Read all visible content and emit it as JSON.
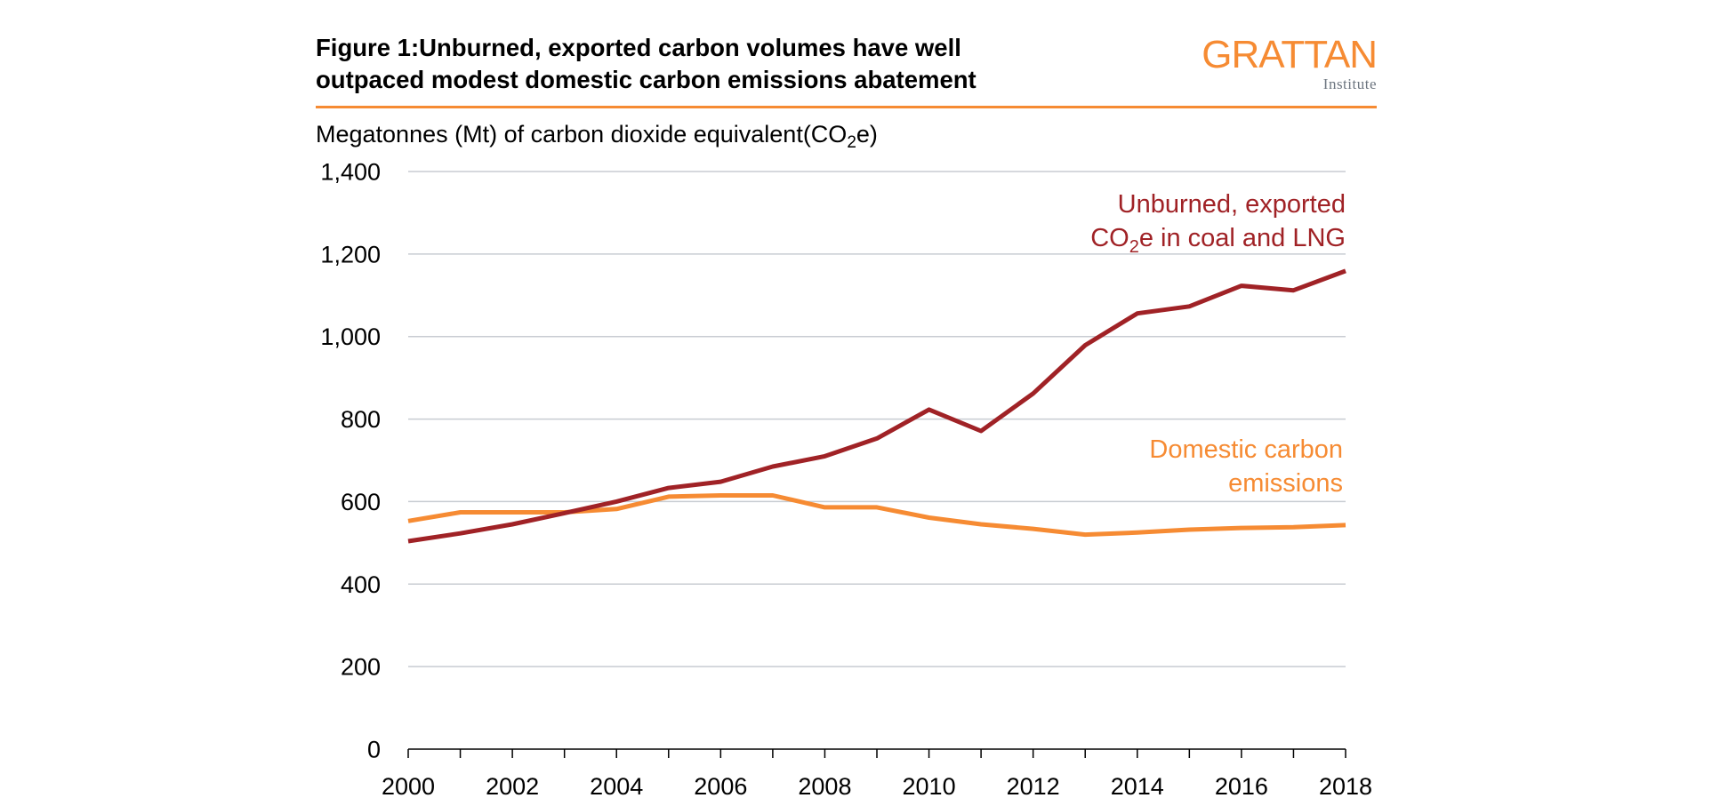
{
  "header": {
    "title_line1": "Figure 1:Unburned, exported carbon volumes have well",
    "title_line2": "outpaced modest domestic carbon emissions abatement",
    "logo_main": "GRATTAN",
    "logo_sub": "Institute"
  },
  "colors": {
    "accent": "#F68B33",
    "exported_series": "#A02226",
    "domestic_series": "#F68B33",
    "gridline": "#c8ccd2",
    "axis": "#000000"
  },
  "chart_data": {
    "type": "line",
    "title": "Figure 1:Unburned, exported carbon volumes have well outpaced modest domestic carbon emissions abatement",
    "ylabel": "Megatonnes (Mt) of carbon dioxide equivalent(CO2e)",
    "ylabel_parts": {
      "pre": "Megatonnes (Mt) of carbon dioxide equivalent(CO",
      "sub": "2",
      "post": "e)"
    },
    "xlabel": "",
    "x": [
      2000,
      2001,
      2002,
      2003,
      2004,
      2005,
      2006,
      2007,
      2008,
      2009,
      2010,
      2011,
      2012,
      2013,
      2014,
      2015,
      2016,
      2017,
      2018
    ],
    "xlim": [
      2000,
      2018
    ],
    "ylim": [
      0,
      1400
    ],
    "x_tick_labels": [
      "2000",
      "2002",
      "2004",
      "2006",
      "2008",
      "2010",
      "2012",
      "2014",
      "2016",
      "2018"
    ],
    "x_tick_values": [
      2000,
      2002,
      2004,
      2006,
      2008,
      2010,
      2012,
      2014,
      2016,
      2018
    ],
    "y_ticks": [
      0,
      200,
      400,
      600,
      800,
      1000,
      1200,
      1400
    ],
    "y_tick_labels": [
      "0",
      "200",
      "400",
      "600",
      "800",
      "1,000",
      "1,200",
      "1,400"
    ],
    "grid": true,
    "series": [
      {
        "name": "Unburned, exported CO2e in coal and LNG",
        "label_line1": "Unburned, exported",
        "label_line2_pre": "CO",
        "label_line2_sub": "2",
        "label_line2_post": "e in coal and LNG",
        "color": "#A02226",
        "values": [
          504,
          523,
          545,
          572,
          600,
          633,
          648,
          685,
          710,
          753,
          823,
          771,
          862,
          979,
          1056,
          1073,
          1123,
          1112,
          1159
        ]
      },
      {
        "name": "Domestic carbon emissions",
        "label_line1": "Domestic carbon",
        "label_line2": "emissions",
        "color": "#F68B33",
        "values": [
          553,
          574,
          574,
          574,
          582,
          612,
          615,
          615,
          586,
          586,
          561,
          545,
          534,
          520,
          525,
          532,
          536,
          538,
          543
        ]
      }
    ],
    "legend": "inline-labels-right"
  }
}
